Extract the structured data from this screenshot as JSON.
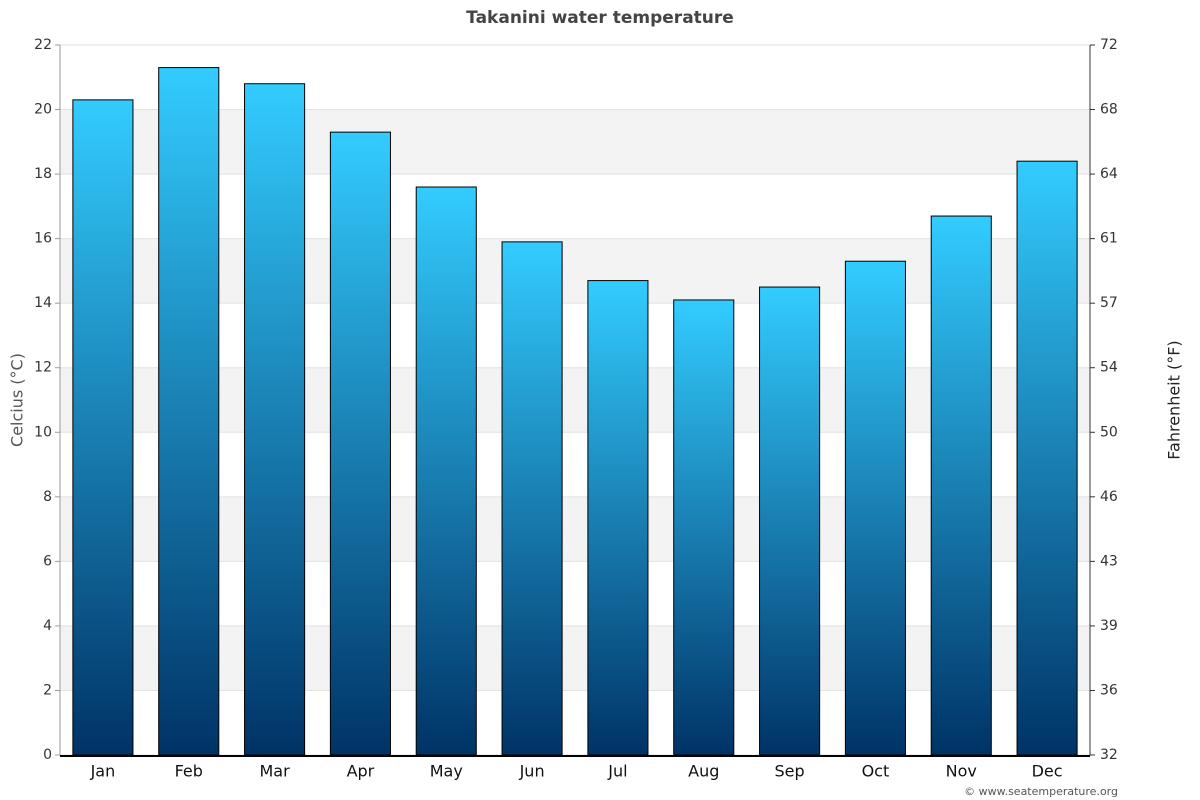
{
  "chart_data": {
    "type": "bar",
    "title": "Takanini water temperature",
    "ylabel": "Celcius (°C)",
    "y2label": "Fahrenheit (°F)",
    "categories": [
      "Jan",
      "Feb",
      "Mar",
      "Apr",
      "May",
      "Jun",
      "Jul",
      "Aug",
      "Sep",
      "Oct",
      "Nov",
      "Dec"
    ],
    "values": [
      20.3,
      21.3,
      20.8,
      19.3,
      17.6,
      15.9,
      14.7,
      14.1,
      14.5,
      15.3,
      16.7,
      18.4
    ],
    "gradient": [
      "#33ccff",
      "#003366"
    ],
    "ylim": [
      0,
      22
    ],
    "yticks": [
      0,
      2,
      4,
      6,
      8,
      10,
      12,
      14,
      16,
      18,
      20,
      22
    ],
    "y2lim": [
      32,
      71.6
    ],
    "y2ticks": [
      32,
      {
        "value": 35.6,
        "label": "36"
      },
      {
        "value": 39.2,
        "label": "39"
      },
      {
        "value": 42.8,
        "label": "43"
      },
      {
        "value": 46.4,
        "label": "46"
      },
      50,
      {
        "value": 53.6,
        "label": "54"
      },
      {
        "value": 57.2,
        "label": "57"
      },
      {
        "value": 60.8,
        "label": "61"
      },
      {
        "value": 64.4,
        "label": "64"
      },
      68,
      {
        "value": 71.6,
        "label": "72"
      }
    ],
    "grid": true,
    "credit": "© www.seatemperature.org"
  }
}
